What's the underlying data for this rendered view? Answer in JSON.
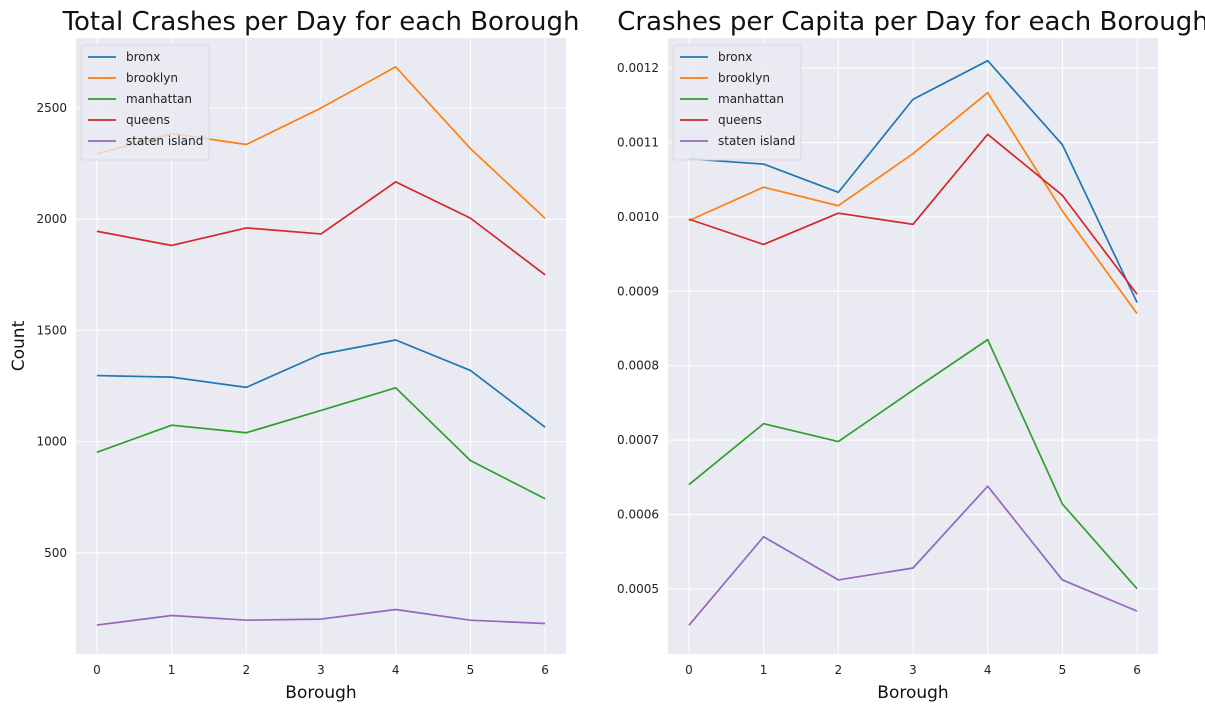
{
  "chart_data": [
    {
      "type": "line",
      "title": "Total Crashes per Day for each Borough",
      "xlabel": "Borough",
      "ylabel": "Count",
      "x": [
        0,
        1,
        2,
        3,
        4,
        5,
        6
      ],
      "xlim": [
        -0.28,
        6.28
      ],
      "ylim": [
        45,
        2815
      ],
      "yticks": [
        500,
        1000,
        1500,
        2000,
        2500
      ],
      "ytick_labels": [
        "500",
        "1000",
        "1500",
        "2000",
        "2500"
      ],
      "grid": true,
      "legend": "top-left",
      "series": [
        {
          "name": "bronx",
          "color": "#1f77b4",
          "values": [
            1297,
            1290,
            1244,
            1393,
            1457,
            1320,
            1065
          ]
        },
        {
          "name": "brooklyn",
          "color": "#ff7f0e",
          "values": [
            2294,
            2385,
            2336,
            2500,
            2685,
            2318,
            2004
          ]
        },
        {
          "name": "manhattan",
          "color": "#2ca02c",
          "values": [
            952,
            1074,
            1040,
            1140,
            1242,
            915,
            743
          ]
        },
        {
          "name": "queens",
          "color": "#d62728",
          "values": [
            1946,
            1882,
            1961,
            1934,
            2168,
            2005,
            1750
          ]
        },
        {
          "name": "staten island",
          "color": "#9467bd",
          "values": [
            175,
            218,
            197,
            202,
            245,
            197,
            182
          ]
        }
      ]
    },
    {
      "type": "line",
      "title": "Crashes per Capita per Day for each Borough",
      "xlabel": "Borough",
      "ylabel": "",
      "x": [
        0,
        1,
        2,
        3,
        4,
        5,
        6
      ],
      "xlim": [
        -0.28,
        6.28
      ],
      "ylim": [
        0.0004124,
        0.0012405
      ],
      "yticks": [
        0.0005,
        0.0006,
        0.0007,
        0.0008,
        0.0009,
        0.001,
        0.0011,
        0.0012
      ],
      "ytick_labels": [
        "0.0005",
        "0.0006",
        "0.0007",
        "0.0008",
        "0.0009",
        "0.0010",
        "0.0011",
        "0.0012"
      ],
      "grid": true,
      "legend": "top-left",
      "series": [
        {
          "name": "bronx",
          "color": "#1f77b4",
          "values": [
            0.001078,
            0.001071,
            0.001033,
            0.001158,
            0.00121,
            0.001097,
            0.000885
          ]
        },
        {
          "name": "brooklyn",
          "color": "#ff7f0e",
          "values": [
            0.000995,
            0.00104,
            0.001015,
            0.001085,
            0.001167,
            0.001008,
            0.00087
          ]
        },
        {
          "name": "manhattan",
          "color": "#2ca02c",
          "values": [
            0.00064,
            0.000722,
            0.000698,
            0.000767,
            0.000835,
            0.000614,
            0.0005
          ]
        },
        {
          "name": "queens",
          "color": "#d62728",
          "values": [
            0.000997,
            0.000963,
            0.001005,
            0.00099,
            0.001111,
            0.001029,
            0.000896
          ]
        },
        {
          "name": "staten island",
          "color": "#9467bd",
          "values": [
            0.000451,
            0.00057,
            0.000512,
            0.000528,
            0.000638,
            0.000512,
            0.00047
          ]
        }
      ]
    }
  ]
}
